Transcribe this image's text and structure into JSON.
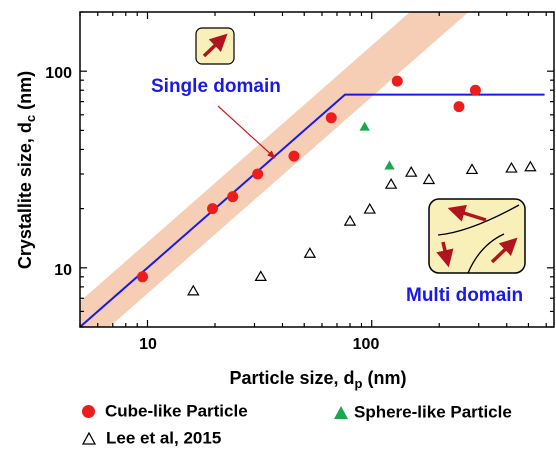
{
  "chart_data": {
    "type": "scatter",
    "xlabel": "Particle size, d",
    "xlabel_sub": "p",
    "xlabel_unit": " (nm)",
    "ylabel": "Crystallite size, d",
    "ylabel_sub": "c",
    "ylabel_unit": " (nm)",
    "xscale": "log",
    "yscale": "log",
    "xlim": [
      5,
      650
    ],
    "ylim": [
      5,
      200
    ],
    "xticks": [
      10,
      100
    ],
    "yticks": [
      10,
      100
    ],
    "xtick_labels": [
      "10",
      "100"
    ],
    "ytick_labels": [
      "10",
      "100"
    ],
    "series": [
      {
        "name": "Cube-like Particle",
        "marker": "filled-circle",
        "color": "#ee1c1c",
        "points": [
          [
            9.5,
            9
          ],
          [
            19.5,
            20
          ],
          [
            24,
            23
          ],
          [
            31,
            30
          ],
          [
            45,
            37
          ],
          [
            66,
            58
          ],
          [
            130,
            89
          ],
          [
            245,
            66
          ],
          [
            290,
            80
          ]
        ]
      },
      {
        "name": "Sphere-like Particle",
        "marker": "filled-triangle",
        "color": "#1aa84c",
        "points": [
          [
            93,
            52
          ],
          [
            120,
            33
          ]
        ]
      },
      {
        "name": "Lee et al, 2015",
        "marker": "open-triangle",
        "color": "#000000",
        "points": [
          [
            16,
            7.6
          ],
          [
            32,
            9
          ],
          [
            53,
            11.8
          ],
          [
            80,
            17.2
          ],
          [
            98,
            19.8
          ],
          [
            122,
            26.5
          ],
          [
            150,
            30.5
          ],
          [
            180,
            28
          ],
          [
            280,
            31.5
          ],
          [
            420,
            32
          ],
          [
            510,
            32.5
          ]
        ]
      }
    ],
    "model_line": {
      "color": "#1a1ae6",
      "points": [
        [
          4.5,
          4.5
        ],
        [
          76,
          76
        ],
        [
          590,
          76
        ]
      ]
    },
    "band": {
      "color": "#f5c5a8",
      "lower_factor": 0.74,
      "upper_factor": 1.35
    },
    "annotations": {
      "single_domain": "Single domain",
      "multi_domain": "Multi domain"
    }
  },
  "legend": {
    "cube": "Cube-like Particle",
    "sphere": "Sphere-like Particle",
    "lee": "Lee et al, 2015"
  },
  "colors": {
    "accent_blue": "#1a1ae6",
    "arrow_red": "#b0141c",
    "icon_fill": "#f8f0b8"
  }
}
